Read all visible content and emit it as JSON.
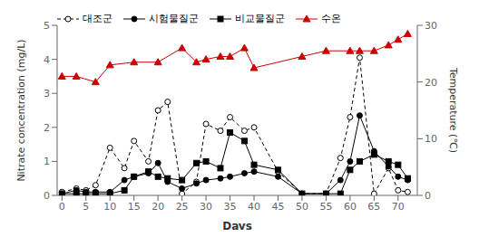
{
  "chart_data": {
    "type": "line",
    "x_label": "Days",
    "y_label": "Nitrate concentration  (mg/L)",
    "y2_label": "Temperature (℃)",
    "xlim": [
      -1,
      74
    ],
    "xticks": [
      0,
      5,
      10,
      15,
      20,
      25,
      30,
      35,
      40,
      45,
      50,
      55,
      60,
      65,
      70
    ],
    "ylim": [
      0,
      5
    ],
    "yticks": [
      0,
      1,
      2,
      3,
      4,
      5
    ],
    "y2lim": [
      0,
      30
    ],
    "y2ticks": [
      0,
      10,
      20,
      30
    ],
    "grid": false,
    "legend": "upper left",
    "series": [
      {
        "name": "대조군",
        "color": "#000000",
        "marker": "open_circle",
        "line_style": "dashed",
        "x": [
          0,
          3,
          5,
          7,
          10,
          13,
          15,
          18,
          20,
          22,
          25,
          28,
          30,
          33,
          35,
          38,
          40,
          45,
          50,
          55,
          58,
          60,
          62,
          65,
          68,
          70,
          72
        ],
        "values": [
          0.1,
          0.2,
          0.15,
          0.3,
          1.4,
          0.8,
          1.6,
          1.0,
          2.5,
          2.75,
          0.05,
          0.4,
          2.1,
          1.9,
          2.3,
          1.9,
          2.0,
          0.7,
          0.05,
          0.05,
          1.1,
          2.3,
          4.05,
          0.05,
          0.8,
          0.15,
          0.1
        ]
      },
      {
        "name": "시험물질군",
        "color": "#000000",
        "marker": "circle",
        "line_style": "solid",
        "x": [
          0,
          3,
          5,
          7,
          10,
          13,
          15,
          18,
          20,
          22,
          25,
          28,
          30,
          33,
          35,
          38,
          40,
          45,
          50,
          55,
          58,
          60,
          62,
          65,
          68,
          70,
          72
        ],
        "values": [
          0.05,
          0.15,
          0.1,
          0.1,
          0.1,
          0.45,
          0.55,
          0.65,
          0.95,
          0.4,
          0.2,
          0.35,
          0.45,
          0.5,
          0.55,
          0.65,
          0.7,
          0.55,
          0.05,
          0.05,
          0.45,
          1.0,
          2.35,
          1.3,
          0.85,
          0.55,
          0.45
        ]
      },
      {
        "name": "비교물질군",
        "color": "#000000",
        "marker": "square",
        "line_style": "solid",
        "x": [
          0,
          3,
          5,
          7,
          10,
          13,
          15,
          18,
          20,
          22,
          25,
          28,
          30,
          33,
          35,
          38,
          40,
          45,
          50,
          55,
          58,
          60,
          62,
          65,
          68,
          70,
          72
        ],
        "values": [
          0.05,
          0.05,
          0.05,
          0.05,
          0.05,
          0.15,
          0.55,
          0.7,
          0.55,
          0.5,
          0.45,
          0.95,
          1.0,
          0.8,
          1.85,
          1.6,
          0.9,
          0.75,
          0.05,
          0.05,
          0.05,
          0.75,
          1.0,
          1.2,
          1.0,
          0.9,
          0.5
        ]
      },
      {
        "name": "수온",
        "color": "#cc0000",
        "marker": "triangle",
        "line_style": "solid",
        "axis": "y2",
        "x": [
          0,
          3,
          7,
          10,
          15,
          20,
          25,
          28,
          30,
          33,
          35,
          38,
          40,
          50,
          55,
          60,
          62,
          65,
          68,
          70,
          72
        ],
        "values": [
          21.0,
          21.0,
          20.0,
          23.0,
          23.5,
          23.5,
          26.0,
          23.5,
          24.0,
          24.5,
          24.5,
          26.0,
          22.5,
          24.5,
          25.5,
          25.5,
          25.5,
          25.5,
          26.5,
          27.5,
          28.5
        ]
      }
    ]
  }
}
